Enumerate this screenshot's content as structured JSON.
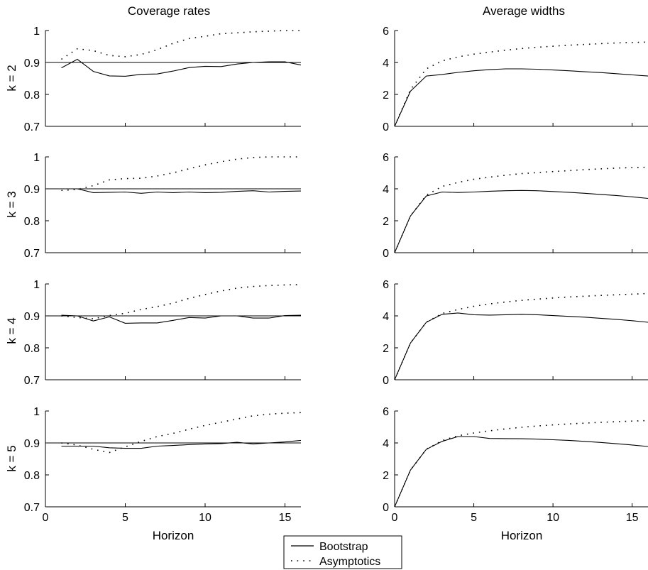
{
  "column_titles": [
    "Coverage rates",
    "Average widths"
  ],
  "row_labels": [
    "k = 2",
    "k = 3",
    "k = 4",
    "k = 5"
  ],
  "legend": {
    "entries": [
      "Bootstrap",
      "Asymptotics"
    ],
    "placement": "bottom-center"
  },
  "chart_data": [
    {
      "type": "line",
      "panel": "coverage-k2",
      "title": "Coverage rates",
      "ylabel": "k = 2",
      "xlabel": "",
      "xlim": [
        0,
        16
      ],
      "ylim": [
        0.7,
        1.0
      ],
      "yticks": [
        0.7,
        0.8,
        0.9,
        1
      ],
      "ytick_labels": [
        "0.7",
        "0.8",
        "0.9",
        "1"
      ],
      "xticks": [
        0,
        5,
        10,
        15
      ],
      "xtick_labels": [
        "",
        "",
        "",
        ""
      ],
      "reference_line": 0.9,
      "x": [
        1,
        2,
        3,
        4,
        5,
        6,
        7,
        8,
        9,
        10,
        11,
        12,
        13,
        14,
        15,
        16
      ],
      "series": [
        {
          "name": "Bootstrap",
          "style": "solid",
          "values": [
            0.883,
            0.91,
            0.872,
            0.858,
            0.857,
            0.863,
            0.864,
            0.873,
            0.884,
            0.888,
            0.887,
            0.895,
            0.9,
            0.902,
            0.902,
            0.892
          ]
        },
        {
          "name": "Asymptotics",
          "style": "dotted",
          "values": [
            0.91,
            0.943,
            0.937,
            0.922,
            0.918,
            0.925,
            0.94,
            0.96,
            0.975,
            0.982,
            0.99,
            0.993,
            0.996,
            0.998,
            1.0,
            1.0
          ]
        }
      ]
    },
    {
      "type": "line",
      "panel": "width-k2",
      "title": "Average widths",
      "ylabel": "",
      "xlabel": "",
      "xlim": [
        0,
        16
      ],
      "ylim": [
        0,
        6
      ],
      "yticks": [
        0,
        2,
        4,
        6
      ],
      "ytick_labels": [
        "0",
        "2",
        "4",
        "6"
      ],
      "xticks": [
        0,
        5,
        10,
        15
      ],
      "xtick_labels": [
        "",
        "",
        "",
        ""
      ],
      "x": [
        0,
        1,
        2,
        3,
        4,
        5,
        6,
        7,
        8,
        9,
        10,
        11,
        12,
        13,
        14,
        15,
        16
      ],
      "series": [
        {
          "name": "Bootstrap",
          "style": "solid",
          "values": [
            0,
            2.2,
            3.15,
            3.25,
            3.38,
            3.48,
            3.55,
            3.6,
            3.6,
            3.58,
            3.53,
            3.48,
            3.42,
            3.37,
            3.3,
            3.22,
            3.15
          ]
        },
        {
          "name": "Asymptotics",
          "style": "dotted",
          "values": [
            0,
            2.3,
            3.6,
            4.1,
            4.35,
            4.52,
            4.65,
            4.77,
            4.87,
            4.95,
            5.02,
            5.08,
            5.13,
            5.18,
            5.22,
            5.25,
            5.28
          ]
        }
      ]
    },
    {
      "type": "line",
      "panel": "coverage-k3",
      "title": "",
      "ylabel": "k = 3",
      "xlabel": "",
      "xlim": [
        0,
        16
      ],
      "ylim": [
        0.7,
        1.0
      ],
      "yticks": [
        0.7,
        0.8,
        0.9,
        1
      ],
      "ytick_labels": [
        "0.7",
        "0.8",
        "0.9",
        "1"
      ],
      "xticks": [
        0,
        5,
        10,
        15
      ],
      "xtick_labels": [
        "",
        "",
        "",
        ""
      ],
      "reference_line": 0.9,
      "x": [
        1,
        2,
        3,
        4,
        5,
        6,
        7,
        8,
        9,
        10,
        11,
        12,
        13,
        14,
        15,
        16
      ],
      "series": [
        {
          "name": "Bootstrap",
          "style": "solid",
          "values": [
            0.9,
            0.9,
            0.888,
            0.889,
            0.89,
            0.886,
            0.89,
            0.888,
            0.89,
            0.888,
            0.889,
            0.892,
            0.894,
            0.89,
            0.892,
            0.893
          ]
        },
        {
          "name": "Asymptotics",
          "style": "dotted",
          "values": [
            0.895,
            0.898,
            0.91,
            0.928,
            0.932,
            0.933,
            0.94,
            0.95,
            0.963,
            0.975,
            0.985,
            0.993,
            0.998,
            1.0,
            1.0,
            1.0
          ]
        }
      ]
    },
    {
      "type": "line",
      "panel": "width-k3",
      "title": "",
      "ylabel": "",
      "xlabel": "",
      "xlim": [
        0,
        16
      ],
      "ylim": [
        0,
        6
      ],
      "yticks": [
        0,
        2,
        4,
        6
      ],
      "ytick_labels": [
        "0",
        "2",
        "4",
        "6"
      ],
      "xticks": [
        0,
        5,
        10,
        15
      ],
      "xtick_labels": [
        "",
        "",
        "",
        ""
      ],
      "x": [
        0,
        1,
        2,
        3,
        4,
        5,
        6,
        7,
        8,
        9,
        10,
        11,
        12,
        13,
        14,
        15,
        16
      ],
      "series": [
        {
          "name": "Bootstrap",
          "style": "solid",
          "values": [
            0,
            2.3,
            3.55,
            3.8,
            3.77,
            3.8,
            3.85,
            3.88,
            3.9,
            3.88,
            3.83,
            3.78,
            3.72,
            3.65,
            3.58,
            3.5,
            3.4
          ]
        },
        {
          "name": "Asymptotics",
          "style": "dotted",
          "values": [
            0,
            2.3,
            3.6,
            4.15,
            4.4,
            4.6,
            4.73,
            4.85,
            4.95,
            5.02,
            5.08,
            5.14,
            5.2,
            5.25,
            5.3,
            5.33,
            5.35
          ]
        }
      ]
    },
    {
      "type": "line",
      "panel": "coverage-k4",
      "title": "",
      "ylabel": "k = 4",
      "xlabel": "",
      "xlim": [
        0,
        16
      ],
      "ylim": [
        0.7,
        1.0
      ],
      "yticks": [
        0.7,
        0.8,
        0.9,
        1
      ],
      "ytick_labels": [
        "0.7",
        "0.8",
        "0.9",
        "1"
      ],
      "xticks": [
        0,
        5,
        10,
        15
      ],
      "xtick_labels": [
        "",
        "",
        "",
        ""
      ],
      "reference_line": 0.9,
      "x": [
        1,
        2,
        3,
        4,
        5,
        6,
        7,
        8,
        9,
        10,
        11,
        12,
        13,
        14,
        15,
        16
      ],
      "series": [
        {
          "name": "Bootstrap",
          "style": "solid",
          "values": [
            0.902,
            0.9,
            0.884,
            0.897,
            0.877,
            0.878,
            0.878,
            0.886,
            0.895,
            0.893,
            0.9,
            0.9,
            0.893,
            0.893,
            0.901,
            0.902
          ]
        },
        {
          "name": "Asymptotics",
          "style": "dotted",
          "values": [
            0.9,
            0.895,
            0.891,
            0.901,
            0.908,
            0.92,
            0.929,
            0.94,
            0.955,
            0.967,
            0.978,
            0.987,
            0.992,
            0.995,
            0.997,
            0.998
          ]
        }
      ]
    },
    {
      "type": "line",
      "panel": "width-k4",
      "title": "",
      "ylabel": "",
      "xlabel": "",
      "xlim": [
        0,
        16
      ],
      "ylim": [
        0,
        6
      ],
      "yticks": [
        0,
        2,
        4,
        6
      ],
      "ytick_labels": [
        "0",
        "2",
        "4",
        "6"
      ],
      "xticks": [
        0,
        5,
        10,
        15
      ],
      "xtick_labels": [
        "",
        "",
        "",
        ""
      ],
      "x": [
        0,
        1,
        2,
        3,
        4,
        5,
        6,
        7,
        8,
        9,
        10,
        11,
        12,
        13,
        14,
        15,
        16
      ],
      "series": [
        {
          "name": "Bootstrap",
          "style": "solid",
          "values": [
            0,
            2.3,
            3.6,
            4.1,
            4.18,
            4.07,
            4.05,
            4.07,
            4.1,
            4.07,
            4.02,
            3.97,
            3.92,
            3.85,
            3.78,
            3.7,
            3.6
          ]
        },
        {
          "name": "Asymptotics",
          "style": "dotted",
          "values": [
            0,
            2.3,
            3.6,
            4.15,
            4.4,
            4.6,
            4.75,
            4.87,
            4.97,
            5.05,
            5.12,
            5.18,
            5.23,
            5.28,
            5.32,
            5.36,
            5.4
          ]
        }
      ]
    },
    {
      "type": "line",
      "panel": "coverage-k5",
      "title": "",
      "ylabel": "k = 5",
      "xlabel": "Horizon",
      "xlim": [
        0,
        16
      ],
      "ylim": [
        0.7,
        1.0
      ],
      "yticks": [
        0.7,
        0.8,
        0.9,
        1
      ],
      "ytick_labels": [
        "0.7",
        "0.8",
        "0.9",
        "1"
      ],
      "xticks": [
        0,
        5,
        10,
        15
      ],
      "xtick_labels": [
        "0",
        "5",
        "10",
        "15"
      ],
      "reference_line": 0.9,
      "x": [
        1,
        2,
        3,
        4,
        5,
        6,
        7,
        8,
        9,
        10,
        11,
        12,
        13,
        14,
        15,
        16
      ],
      "series": [
        {
          "name": "Bootstrap",
          "style": "solid",
          "values": [
            0.89,
            0.89,
            0.89,
            0.885,
            0.883,
            0.883,
            0.89,
            0.892,
            0.895,
            0.897,
            0.898,
            0.902,
            0.897,
            0.9,
            0.903,
            0.908
          ]
        },
        {
          "name": "Asymptotics",
          "style": "dotted",
          "values": [
            0.9,
            0.893,
            0.88,
            0.87,
            0.888,
            0.905,
            0.92,
            0.93,
            0.943,
            0.955,
            0.965,
            0.975,
            0.985,
            0.99,
            0.993,
            0.995
          ]
        }
      ]
    },
    {
      "type": "line",
      "panel": "width-k5",
      "title": "",
      "ylabel": "",
      "xlabel": "Horizon",
      "xlim": [
        0,
        16
      ],
      "ylim": [
        0,
        6
      ],
      "yticks": [
        0,
        2,
        4,
        6
      ],
      "ytick_labels": [
        "0",
        "2",
        "4",
        "6"
      ],
      "xticks": [
        0,
        5,
        10,
        15
      ],
      "xtick_labels": [
        "0",
        "5",
        "10",
        "15"
      ],
      "x": [
        0,
        1,
        2,
        3,
        4,
        5,
        6,
        7,
        8,
        9,
        10,
        11,
        12,
        13,
        14,
        15,
        16
      ],
      "series": [
        {
          "name": "Bootstrap",
          "style": "solid",
          "values": [
            0,
            2.3,
            3.6,
            4.1,
            4.4,
            4.4,
            4.28,
            4.27,
            4.26,
            4.24,
            4.2,
            4.16,
            4.1,
            4.03,
            3.95,
            3.87,
            3.78
          ]
        },
        {
          "name": "Asymptotics",
          "style": "dotted",
          "values": [
            0,
            2.3,
            3.6,
            4.15,
            4.45,
            4.62,
            4.76,
            4.88,
            4.98,
            5.06,
            5.13,
            5.19,
            5.24,
            5.29,
            5.33,
            5.37,
            5.4
          ]
        }
      ]
    }
  ]
}
